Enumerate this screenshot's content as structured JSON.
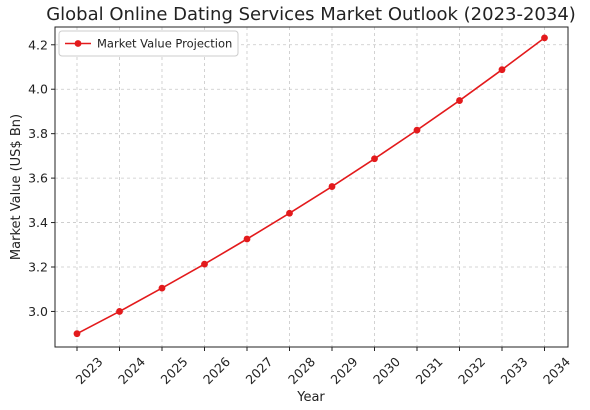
{
  "chart_data": {
    "type": "line",
    "title": "Global Online Dating Services Market Outlook (2023-2034)",
    "xlabel": "Year",
    "ylabel": "Market Value (US$ Bn)",
    "categories": [
      "2023",
      "2024",
      "2025",
      "2026",
      "2027",
      "2028",
      "2029",
      "2030",
      "2031",
      "2032",
      "2033",
      "2034"
    ],
    "series": [
      {
        "name": "Market Value Projection",
        "color": "#e31a1c",
        "values": [
          2.9,
          3.0,
          3.105,
          3.213,
          3.326,
          3.442,
          3.562,
          3.687,
          3.816,
          3.949,
          4.088,
          4.231
        ]
      }
    ],
    "yticks": [
      "3.0",
      "3.2",
      "3.4",
      "3.6",
      "3.8",
      "4.0",
      "4.2"
    ],
    "ylim": [
      2.84,
      4.28
    ],
    "grid": true,
    "legend_position": "top-left",
    "marker": "circle"
  }
}
